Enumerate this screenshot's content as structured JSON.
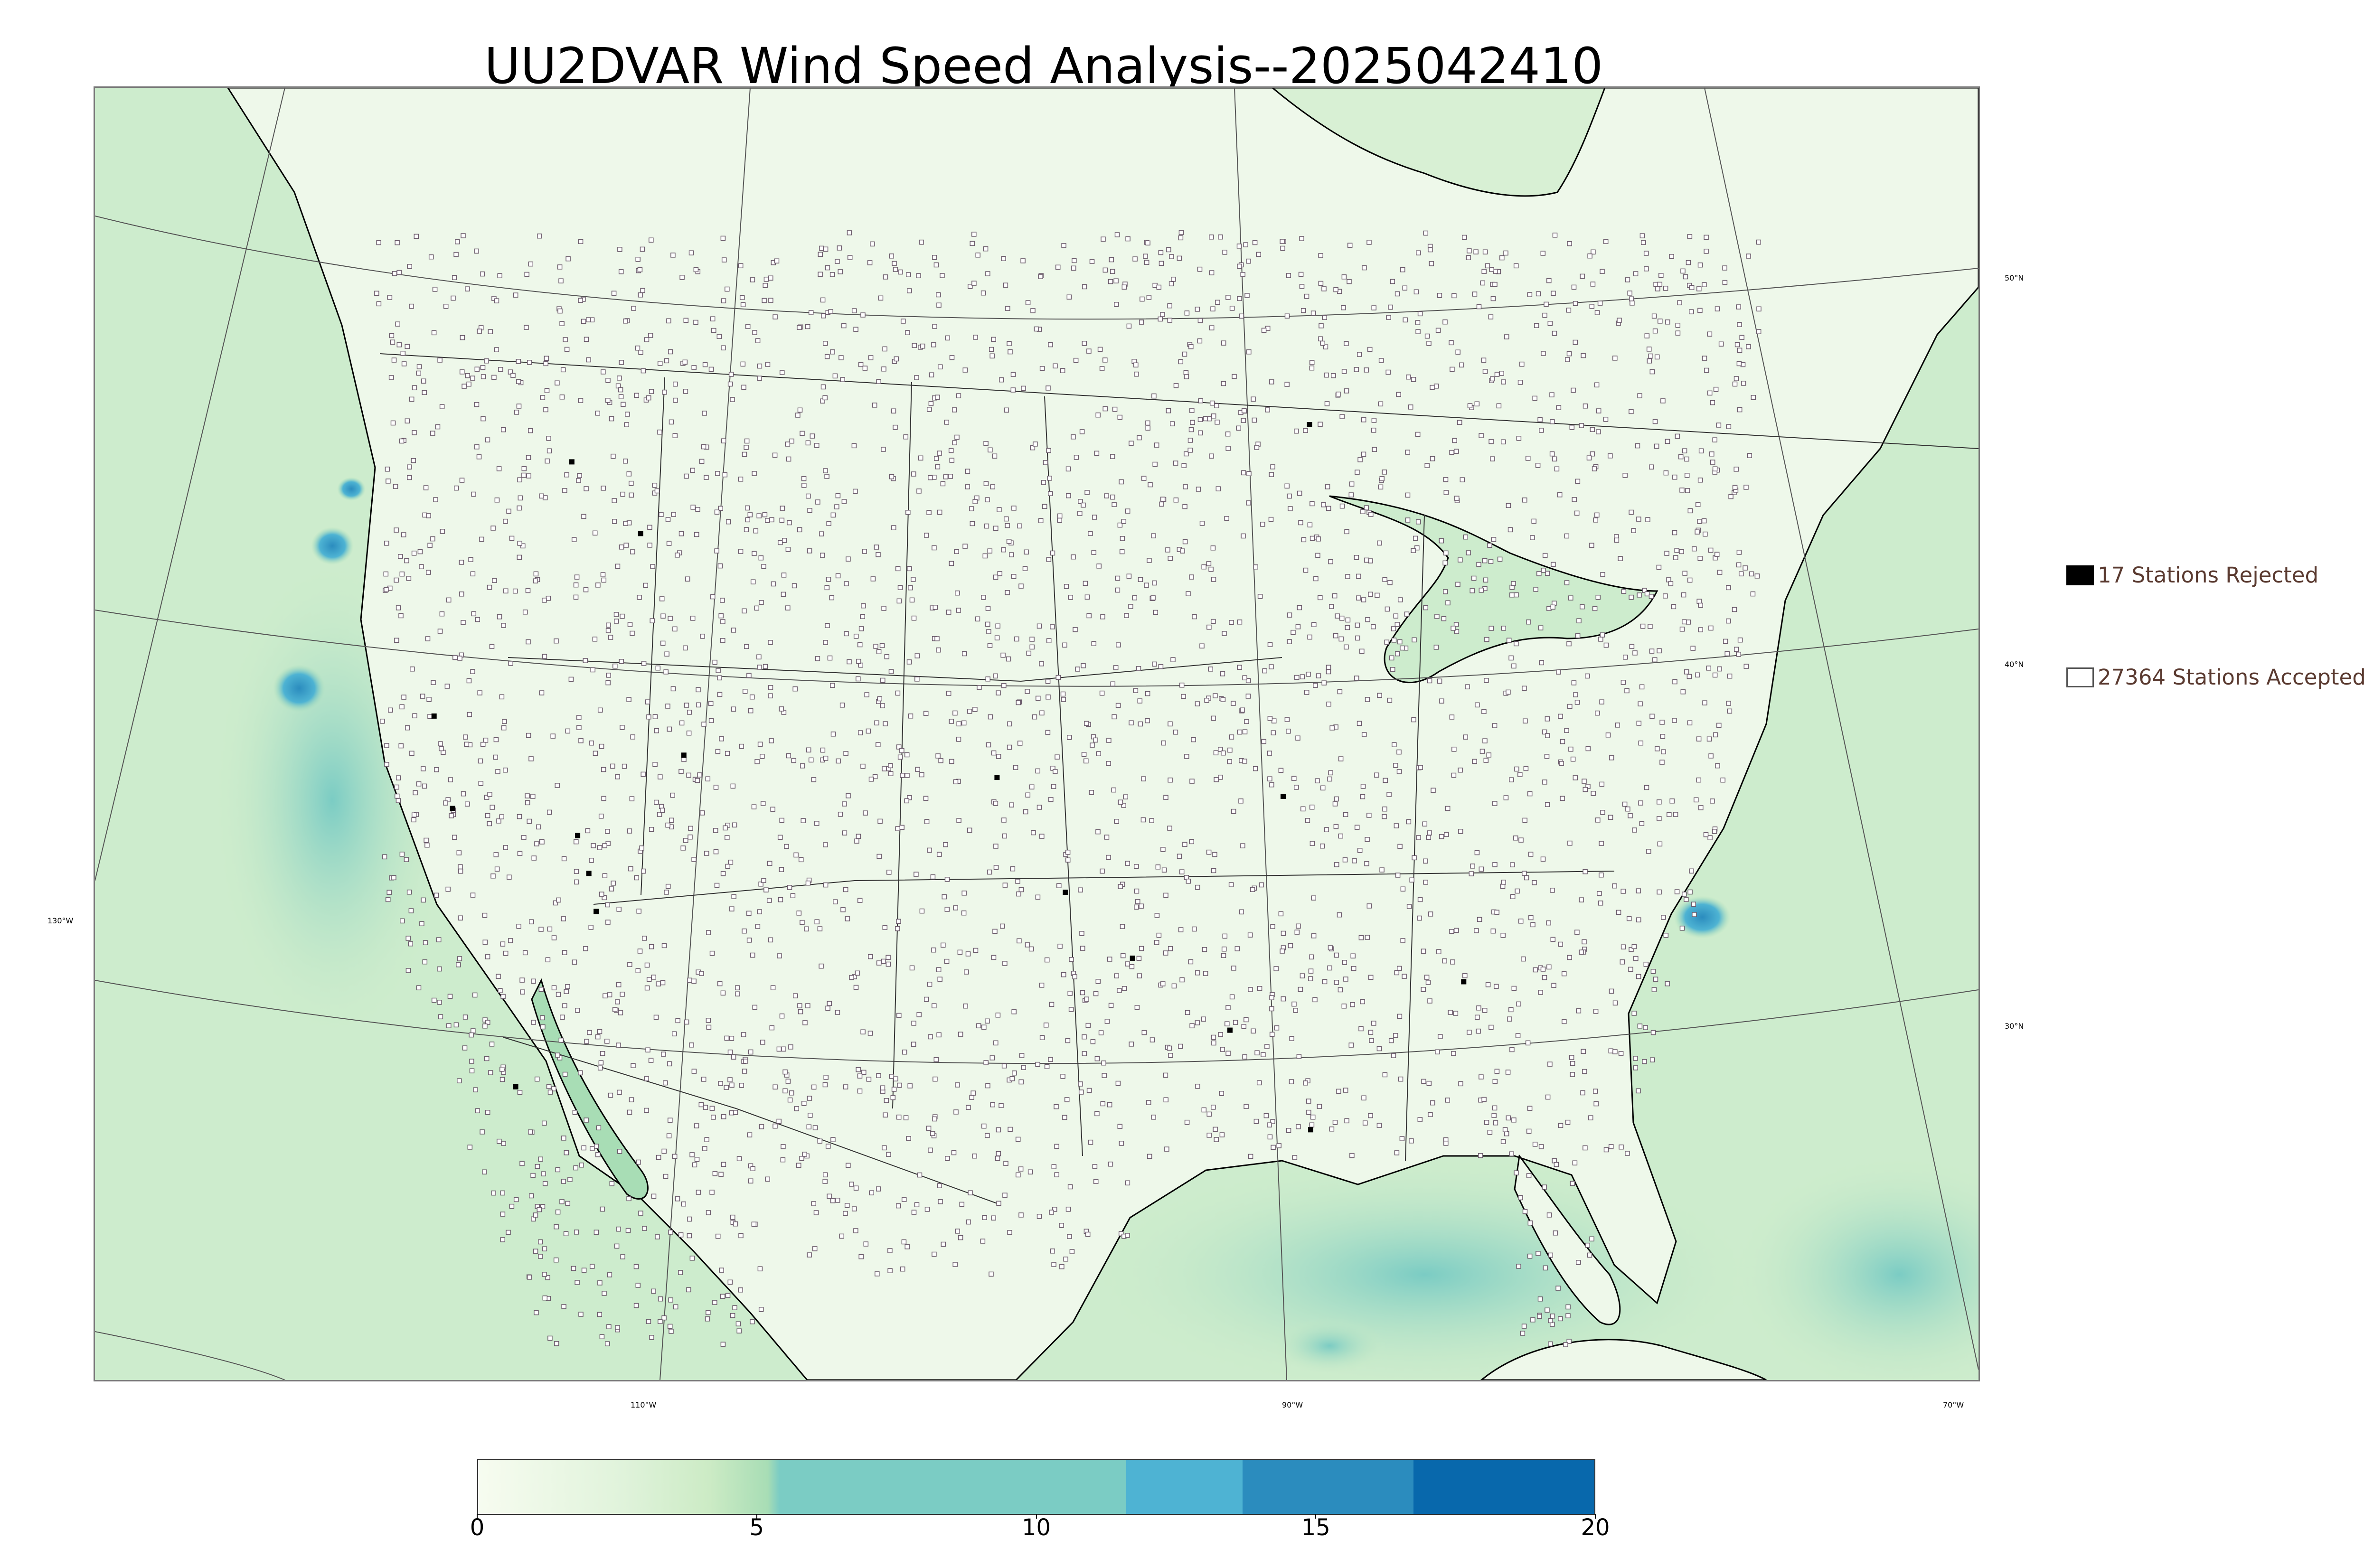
{
  "title": "UU2DVAR Wind Speed Analysis--2025042410",
  "legend": {
    "rejected_label": "17 Stations Rejected",
    "accepted_label": "27364 Stations Accepted",
    "rejected_color": "#000000",
    "accepted_color": "#ffffff"
  },
  "graticule_labels": {
    "lat_50": "50°N",
    "lat_40": "40°N",
    "lat_30": "30°N",
    "lon_130": "130°W",
    "lon_110": "110°W",
    "lon_90": "90°W",
    "lon_70": "70°W"
  },
  "colorbar": {
    "ticks": [
      "0",
      "5",
      "10",
      "15",
      "20"
    ],
    "min": 0,
    "max": 20,
    "colors": [
      "#f7fcf0",
      "#e0f3db",
      "#ccebc5",
      "#a8ddb5",
      "#7bccc4",
      "#4eb3d3",
      "#2b8cbe",
      "#0868ac"
    ]
  },
  "colors": {
    "ocean_field": "#cdeccd",
    "land_field": "#eef8ea",
    "high_wind": "#2b8cbe",
    "coastline": "#000000",
    "border": "#333333",
    "station_marker_edge": "#6a5a6a"
  }
}
